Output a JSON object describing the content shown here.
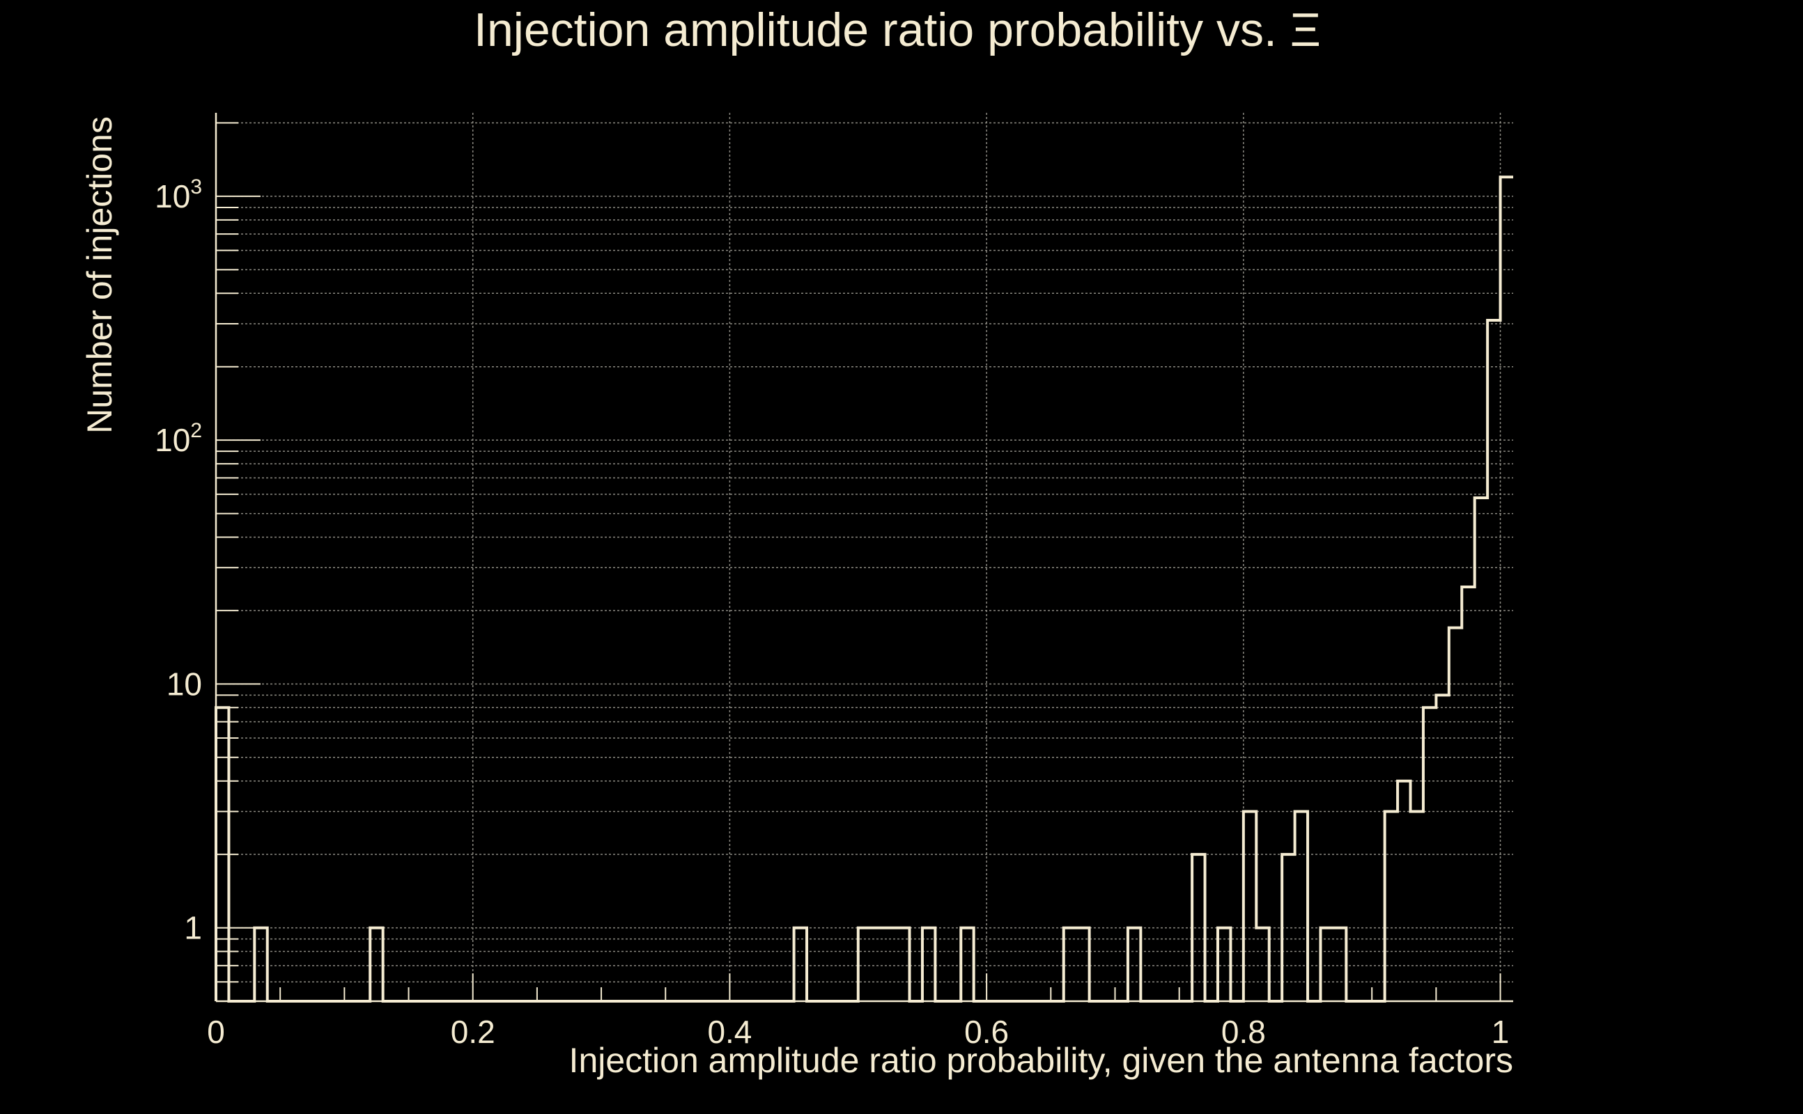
{
  "colors": {
    "background": "#000000",
    "foreground": "#f5ecd2",
    "grid": "#8c8a82"
  },
  "chart_data": {
    "type": "histogram",
    "title": "Injection amplitude ratio probability vs.  Ξ",
    "xlabel": "Injection amplitude ratio probability, given the antenna factors",
    "ylabel": "Number of injections",
    "xlim": [
      0,
      1.01
    ],
    "ylim": [
      0.5,
      2200
    ],
    "yscale": "log",
    "grid": true,
    "x_ticks": [
      0,
      0.2,
      0.4,
      0.6,
      0.8,
      1
    ],
    "x_tick_labels": [
      "0",
      "0.2",
      "0.4",
      "0.6",
      "0.8",
      "1"
    ],
    "y_ticks": [
      1,
      10,
      100,
      1000
    ],
    "y_tick_labels": [
      {
        "base": "1",
        "exp": ""
      },
      {
        "base": "10",
        "exp": ""
      },
      {
        "base": "10",
        "exp": "2"
      },
      {
        "base": "10",
        "exp": "3"
      }
    ],
    "bin_width": 0.01,
    "bins": [
      {
        "x": 0.0,
        "count": 8
      },
      {
        "x": 0.03,
        "count": 1
      },
      {
        "x": 0.12,
        "count": 1
      },
      {
        "x": 0.45,
        "count": 1
      },
      {
        "x": 0.5,
        "count": 1
      },
      {
        "x": 0.51,
        "count": 1
      },
      {
        "x": 0.52,
        "count": 1
      },
      {
        "x": 0.53,
        "count": 1
      },
      {
        "x": 0.55,
        "count": 1
      },
      {
        "x": 0.58,
        "count": 1
      },
      {
        "x": 0.66,
        "count": 1
      },
      {
        "x": 0.67,
        "count": 1
      },
      {
        "x": 0.71,
        "count": 1
      },
      {
        "x": 0.76,
        "count": 2
      },
      {
        "x": 0.78,
        "count": 1
      },
      {
        "x": 0.8,
        "count": 3
      },
      {
        "x": 0.81,
        "count": 1
      },
      {
        "x": 0.83,
        "count": 2
      },
      {
        "x": 0.84,
        "count": 3
      },
      {
        "x": 0.86,
        "count": 1
      },
      {
        "x": 0.87,
        "count": 1
      },
      {
        "x": 0.91,
        "count": 3
      },
      {
        "x": 0.92,
        "count": 4
      },
      {
        "x": 0.93,
        "count": 3
      },
      {
        "x": 0.94,
        "count": 8
      },
      {
        "x": 0.95,
        "count": 9
      },
      {
        "x": 0.96,
        "count": 17
      },
      {
        "x": 0.97,
        "count": 25
      },
      {
        "x": 0.98,
        "count": 58
      },
      {
        "x": 0.99,
        "count": 310
      },
      {
        "x": 1.0,
        "count": 1200
      }
    ]
  }
}
